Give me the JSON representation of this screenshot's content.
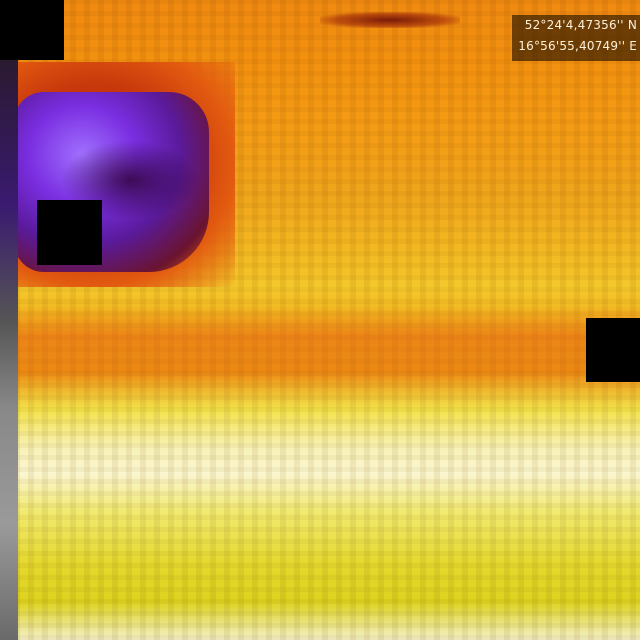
{
  "coordinates": {
    "latitude": "52°24'4,47356'' N",
    "longitude": "16°56'55,40749'' E"
  },
  "palette": {
    "hot": "#f08a10",
    "warm": "#f4c82a",
    "hottest": "#fbf6d0",
    "cold": "#7a2ee0"
  }
}
